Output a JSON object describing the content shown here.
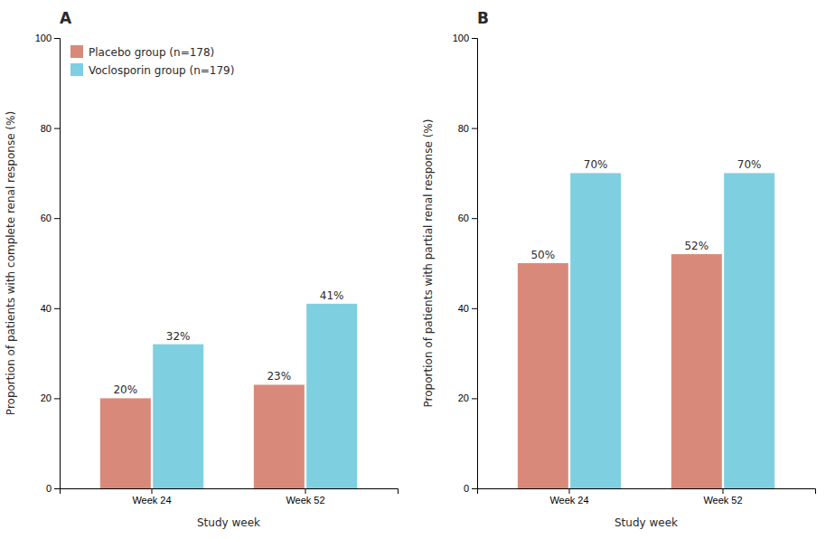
{
  "chart_data": [
    {
      "type": "bar",
      "title": "A",
      "x_label": "Study week",
      "y_label": "Proportion of patients with complete renal response (%)",
      "categories": [
        "Week 24",
        "Week 52"
      ],
      "series": [
        {
          "name": "Placebo group (n=178)",
          "color": "#D9897A",
          "values": [
            20,
            23
          ],
          "value_labels": [
            "20%",
            "23%"
          ]
        },
        {
          "name": "Voclosporin group (n=179)",
          "color": "#7ECFE0",
          "values": [
            32,
            41
          ],
          "value_labels": [
            "32%",
            "41%"
          ]
        }
      ],
      "ylim": [
        0,
        100
      ],
      "yticks": [
        0,
        20,
        40,
        60,
        80,
        100
      ],
      "grid": false,
      "data_labels": true,
      "legend": "top-left"
    },
    {
      "type": "bar",
      "title": "B",
      "x_label": "Study week",
      "y_label": "Proportion of patients with partial renal response (%)",
      "categories": [
        "Week 24",
        "Week 52"
      ],
      "series": [
        {
          "color": "#D9897A",
          "values": [
            50,
            52
          ],
          "value_labels": [
            "50%",
            "52%"
          ]
        },
        {
          "color": "#7ECFE0",
          "values": [
            70,
            70
          ],
          "value_labels": [
            "70%",
            "70%"
          ]
        }
      ],
      "ylim": [
        0,
        100
      ],
      "yticks": [
        0,
        20,
        40,
        60,
        80,
        100
      ],
      "grid": false,
      "data_labels": true
    }
  ]
}
